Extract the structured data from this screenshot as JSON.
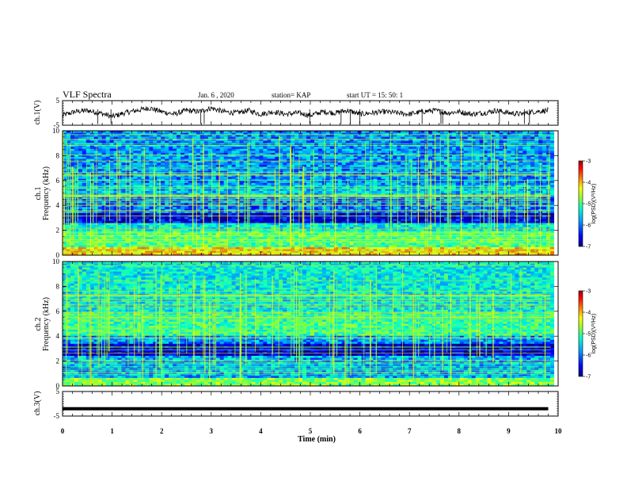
{
  "header": {
    "title": "VLF Spectra",
    "date": "Jan. 6 , 2020",
    "station": "station= KAP",
    "start_ut": "start UT =  15: 50: 1"
  },
  "chart_data": [
    {
      "type": "line",
      "name": "ch1-voltage",
      "ylabel": "ch.1(V)",
      "ylim": [
        -5,
        5
      ],
      "yticks": [
        "5",
        "-5"
      ],
      "x": [
        0,
        0.25,
        0.5,
        0.75,
        1,
        1.25,
        1.5,
        1.75,
        2,
        2.25,
        2.5,
        2.75,
        3,
        3.25,
        3.5,
        3.75,
        4,
        4.25,
        4.5,
        4.75,
        5,
        5.25,
        5.5,
        5.75,
        6,
        6.25,
        6.5,
        6.75,
        7,
        7.25,
        7.5,
        7.75,
        8,
        8.25,
        8.5,
        8.75,
        9,
        9.25,
        9.5,
        9.8
      ],
      "y": [
        -1,
        0.5,
        1,
        0,
        -1.5,
        0,
        1,
        2,
        0.5,
        -0.5,
        1,
        0.5,
        2,
        0.5,
        0,
        1,
        -0.5,
        0.5,
        -0.5,
        0,
        -1,
        0.5,
        0,
        1,
        -0.5,
        0,
        0.5,
        0,
        -0.5,
        0.5,
        1,
        0,
        0.5,
        -0.5,
        0,
        1,
        0,
        -0.5,
        0.5,
        1
      ]
    },
    {
      "type": "heatmap",
      "name": "ch1-spectrogram",
      "ylabel_top": "ch.1",
      "ylabel": "Frequency (kHz)",
      "ylim": [
        0,
        10
      ],
      "yticks": [
        "0",
        "2",
        "4",
        "6",
        "8",
        "10"
      ],
      "xlim": [
        0,
        10
      ],
      "colorbar": {
        "label": "log(PSD)(V²/Hz)",
        "range": [
          -7,
          -3
        ],
        "ticks": [
          "-3",
          "-4",
          "-5",
          "-6",
          "-7"
        ]
      },
      "band_levels_by_freq": [
        {
          "freq_khz": [
            0,
            0.6
          ],
          "log_psd": -4.3
        },
        {
          "freq_khz": [
            0.6,
            2.0
          ],
          "log_psd": -5.2
        },
        {
          "freq_khz": [
            2.0,
            2.6
          ],
          "log_psd": -5.6
        },
        {
          "freq_khz": [
            2.6,
            3.4
          ],
          "log_psd": -6.6
        },
        {
          "freq_khz": [
            3.4,
            4.6
          ],
          "log_psd": -6.1
        },
        {
          "freq_khz": [
            4.6,
            5.6
          ],
          "log_psd": -5.8
        },
        {
          "freq_khz": [
            5.6,
            10
          ],
          "log_psd": -6.0
        }
      ]
    },
    {
      "type": "heatmap",
      "name": "ch2-spectrogram",
      "ylabel_top": "ch.2",
      "ylabel": "Frequency (kHz)",
      "ylim": [
        0,
        10
      ],
      "yticks": [
        "0",
        "2",
        "4",
        "6",
        "8",
        "10"
      ],
      "xlim": [
        0,
        10
      ],
      "colorbar": {
        "label": "log(PSD)(V²/Hz)",
        "range": [
          -7,
          -3
        ],
        "ticks": [
          "-3",
          "-4",
          "-5",
          "-6",
          "-7"
        ]
      },
      "band_levels_by_freq": [
        {
          "freq_khz": [
            0,
            0.6
          ],
          "log_psd": -5.0
        },
        {
          "freq_khz": [
            0.6,
            2.4
          ],
          "log_psd": -5.9
        },
        {
          "freq_khz": [
            2.4,
            3.4
          ],
          "log_psd": -6.7
        },
        {
          "freq_khz": [
            3.4,
            4.0
          ],
          "log_psd": -6.0
        },
        {
          "freq_khz": [
            4.0,
            6.0
          ],
          "log_psd": -5.3
        },
        {
          "freq_khz": [
            6.0,
            10
          ],
          "log_psd": -5.6
        }
      ]
    },
    {
      "type": "line",
      "name": "ch3-voltage",
      "ylabel": "ch.3(V)",
      "ylim": [
        -5,
        5
      ],
      "yticks": [
        "5",
        "-5"
      ],
      "x": [
        0,
        9.8
      ],
      "y": [
        -2,
        -2
      ]
    }
  ],
  "x_axis": {
    "label": "Time (min)",
    "range": [
      0,
      10
    ],
    "ticks": [
      "0",
      "1",
      "2",
      "3",
      "4",
      "5",
      "6",
      "7",
      "8",
      "9",
      "10"
    ]
  },
  "colors": {
    "trace": "#000000",
    "colormap": [
      "#000080",
      "#0000ff",
      "#00a0ff",
      "#00ffd0",
      "#80ff40",
      "#ffff00",
      "#ff8000",
      "#ff0000",
      "#a00000"
    ]
  }
}
